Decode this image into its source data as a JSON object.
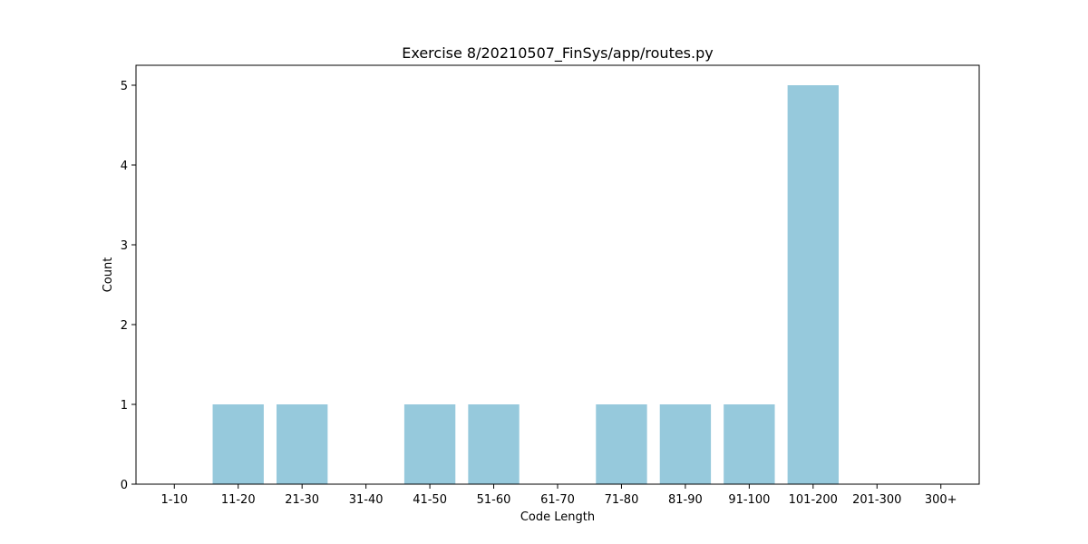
{
  "chart_data": {
    "type": "bar",
    "title": "Exercise 8/20210507_FinSys/app/routes.py",
    "xlabel": "Code Length",
    "ylabel": "Count",
    "categories": [
      "1-10",
      "11-20",
      "21-30",
      "31-40",
      "41-50",
      "51-60",
      "61-70",
      "71-80",
      "81-90",
      "91-100",
      "101-200",
      "201-300",
      "300+"
    ],
    "values": [
      0,
      1,
      1,
      0,
      1,
      1,
      0,
      1,
      1,
      1,
      5,
      0,
      0
    ],
    "ylim": [
      0,
      5.25
    ],
    "yticks": [
      0,
      1,
      2,
      3,
      4,
      5
    ],
    "bar_color": "#96c9dc",
    "grid": false,
    "legend": "none"
  }
}
